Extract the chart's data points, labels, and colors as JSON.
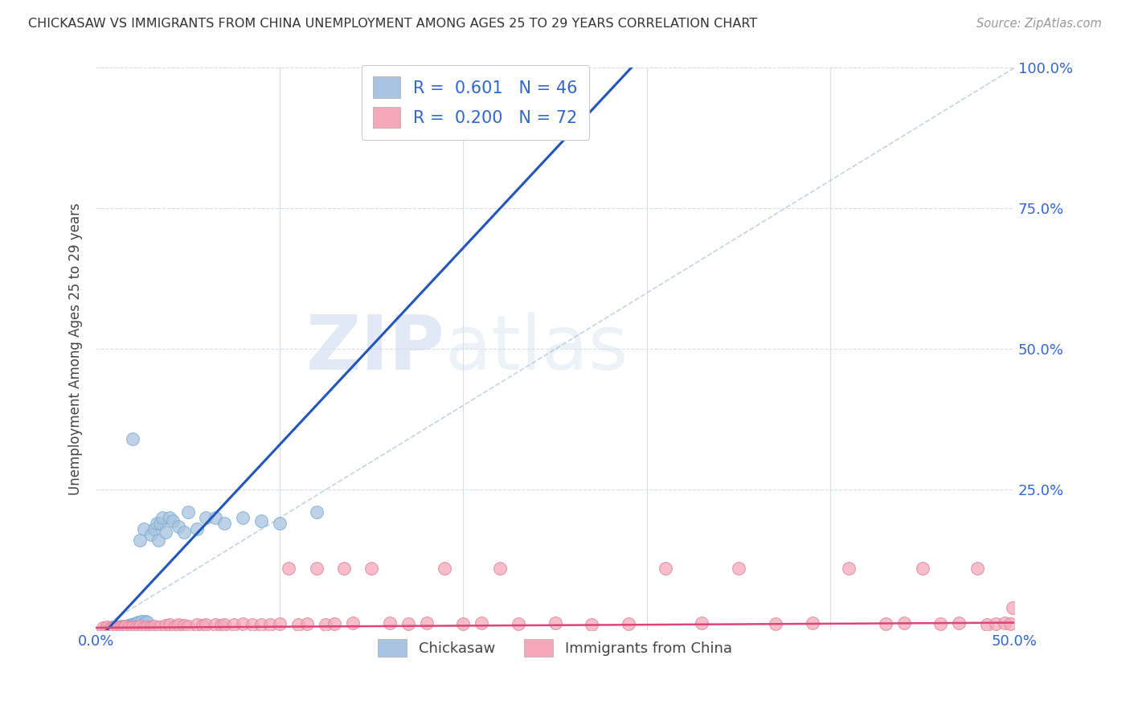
{
  "title": "CHICKASAW VS IMMIGRANTS FROM CHINA UNEMPLOYMENT AMONG AGES 25 TO 29 YEARS CORRELATION CHART",
  "source": "Source: ZipAtlas.com",
  "ylabel": "Unemployment Among Ages 25 to 29 years",
  "xlim": [
    0.0,
    0.5
  ],
  "ylim": [
    0.0,
    1.0
  ],
  "chickasaw_color": "#a8c4e0",
  "china_color": "#f4a8b8",
  "chickasaw_line_color": "#2255bb",
  "china_line_color": "#dd4477",
  "ref_line_color": "#b8c8d8",
  "legend_R1": "0.601",
  "legend_N1": "46",
  "legend_R2": "0.200",
  "legend_N2": "72",
  "legend_label1": "Chickasaw",
  "legend_label2": "Immigrants from China",
  "watermark_zip": "ZIP",
  "watermark_atlas": "atlas",
  "background_color": "#ffffff",
  "grid_color": "#d8dde8",
  "chickasaw_x": [
    0.005,
    0.007,
    0.008,
    0.009,
    0.01,
    0.01,
    0.011,
    0.012,
    0.013,
    0.014,
    0.015,
    0.015,
    0.016,
    0.017,
    0.018,
    0.019,
    0.02,
    0.02,
    0.021,
    0.022,
    0.023,
    0.024,
    0.025,
    0.026,
    0.027,
    0.028,
    0.03,
    0.032,
    0.033,
    0.034,
    0.035,
    0.036,
    0.038,
    0.04,
    0.042,
    0.045,
    0.048,
    0.05,
    0.055,
    0.06,
    0.065,
    0.07,
    0.08,
    0.09,
    0.1,
    0.12
  ],
  "chickasaw_y": [
    0.004,
    0.003,
    0.005,
    0.004,
    0.006,
    0.007,
    0.005,
    0.006,
    0.007,
    0.008,
    0.005,
    0.006,
    0.007,
    0.008,
    0.009,
    0.01,
    0.01,
    0.34,
    0.012,
    0.014,
    0.015,
    0.16,
    0.016,
    0.18,
    0.017,
    0.015,
    0.17,
    0.18,
    0.19,
    0.16,
    0.19,
    0.2,
    0.175,
    0.2,
    0.195,
    0.185,
    0.175,
    0.21,
    0.18,
    0.2,
    0.2,
    0.19,
    0.2,
    0.195,
    0.19,
    0.21
  ],
  "china_x": [
    0.004,
    0.006,
    0.008,
    0.01,
    0.012,
    0.014,
    0.015,
    0.016,
    0.018,
    0.02,
    0.022,
    0.024,
    0.026,
    0.028,
    0.03,
    0.032,
    0.035,
    0.038,
    0.04,
    0.043,
    0.045,
    0.048,
    0.05,
    0.055,
    0.058,
    0.06,
    0.065,
    0.068,
    0.07,
    0.075,
    0.08,
    0.085,
    0.09,
    0.095,
    0.1,
    0.105,
    0.11,
    0.115,
    0.12,
    0.125,
    0.13,
    0.135,
    0.14,
    0.15,
    0.16,
    0.17,
    0.18,
    0.19,
    0.2,
    0.21,
    0.22,
    0.23,
    0.25,
    0.27,
    0.29,
    0.31,
    0.33,
    0.35,
    0.37,
    0.39,
    0.41,
    0.43,
    0.44,
    0.45,
    0.46,
    0.47,
    0.48,
    0.485,
    0.49,
    0.495,
    0.498,
    0.499
  ],
  "china_y": [
    0.005,
    0.006,
    0.004,
    0.006,
    0.005,
    0.007,
    0.006,
    0.008,
    0.005,
    0.007,
    0.006,
    0.008,
    0.005,
    0.007,
    0.006,
    0.008,
    0.007,
    0.009,
    0.01,
    0.008,
    0.01,
    0.009,
    0.008,
    0.01,
    0.009,
    0.011,
    0.01,
    0.009,
    0.011,
    0.01,
    0.012,
    0.01,
    0.011,
    0.01,
    0.012,
    0.11,
    0.011,
    0.012,
    0.11,
    0.011,
    0.012,
    0.11,
    0.013,
    0.11,
    0.014,
    0.012,
    0.013,
    0.11,
    0.012,
    0.013,
    0.11,
    0.012,
    0.013,
    0.011,
    0.012,
    0.11,
    0.013,
    0.11,
    0.012,
    0.013,
    0.11,
    0.012,
    0.013,
    0.11,
    0.012,
    0.013,
    0.11,
    0.011,
    0.012,
    0.013,
    0.012,
    0.04
  ]
}
